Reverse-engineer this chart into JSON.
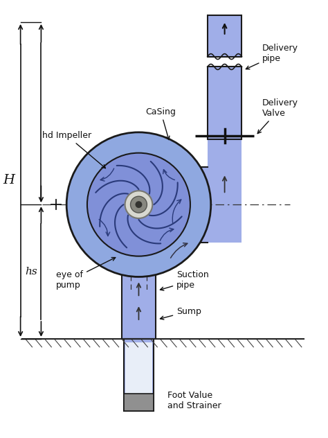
{
  "bg_color": "#ffffff",
  "blue_light": "#a0aee8",
  "blue_mid": "#8899dd",
  "blue_volute": "#8fa8e0",
  "blue_imp": "#7090d0",
  "imp_dark": "#2a3a7a",
  "lc": "#1a1a1a",
  "dc": "#111111",
  "hub_light": "#d8d8d0",
  "hub_dark": "#888880",
  "labels": {
    "delivery_pipe": "Delivery\npipe",
    "delivery_valve": "Delivery\nValve",
    "casing": "CaSing",
    "impeller": "hd Impeller",
    "eye_pump": "eye of\npump",
    "suction_pipe": "Suction\npipe",
    "sump": "Sump",
    "foot_valve": "Foot Value\nand Strainer",
    "H": "H",
    "hs": "hs"
  }
}
